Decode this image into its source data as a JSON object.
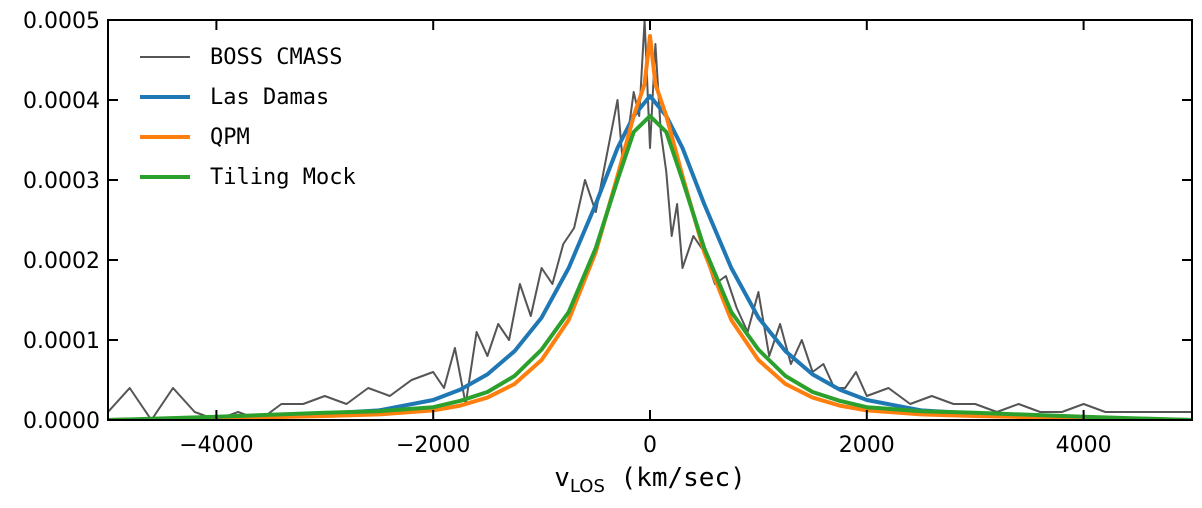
{
  "chart_data": {
    "type": "line",
    "xlabel_main": "v",
    "xlabel_sub": "LOS",
    "xlabel_rest": " (km/sec)",
    "ylabel": "",
    "xlim": [
      -5000,
      5000
    ],
    "ylim": [
      0.0,
      0.0005
    ],
    "x_ticks": [
      -4000,
      -2000,
      0,
      2000,
      4000
    ],
    "x_tick_labels": [
      "−4000",
      "−2000",
      "0",
      "2000",
      "4000"
    ],
    "y_ticks": [
      0.0,
      0.0001,
      0.0002,
      0.0003,
      0.0004,
      0.0005
    ],
    "y_tick_labels": [
      "0.0000",
      "0.0001",
      "0.0002",
      "0.0003",
      "0.0004",
      "0.0005"
    ],
    "grid": false,
    "legend_position": "top-left",
    "series": [
      {
        "name": "BOSS CMASS",
        "color": "#555555",
        "x": [
          -5000,
          -4800,
          -4600,
          -4400,
          -4200,
          -4000,
          -3800,
          -3600,
          -3400,
          -3200,
          -3000,
          -2800,
          -2600,
          -2400,
          -2200,
          -2000,
          -1900,
          -1800,
          -1700,
          -1600,
          -1500,
          -1400,
          -1300,
          -1200,
          -1100,
          -1000,
          -900,
          -800,
          -700,
          -600,
          -500,
          -400,
          -300,
          -250,
          -200,
          -150,
          -100,
          -50,
          0,
          50,
          100,
          150,
          200,
          250,
          300,
          400,
          500,
          600,
          700,
          800,
          900,
          1000,
          1100,
          1200,
          1300,
          1400,
          1500,
          1600,
          1700,
          1800,
          1900,
          2000,
          2200,
          2400,
          2600,
          2800,
          3000,
          3200,
          3400,
          3600,
          3800,
          4000,
          4200,
          4400,
          4600,
          4800,
          5000
        ],
        "y": [
          1e-05,
          4e-05,
          0.0,
          4e-05,
          1e-05,
          0.0,
          1e-05,
          0.0,
          2e-05,
          2e-05,
          3e-05,
          2e-05,
          4e-05,
          3e-05,
          5e-05,
          6e-05,
          4e-05,
          9e-05,
          2e-05,
          0.00011,
          8e-05,
          0.00012,
          0.0001,
          0.00017,
          0.00013,
          0.00019,
          0.00017,
          0.00022,
          0.00024,
          0.0003,
          0.00026,
          0.00033,
          0.0004,
          0.00032,
          0.00036,
          0.00041,
          0.00038,
          0.0005,
          0.00034,
          0.00047,
          0.00036,
          0.00031,
          0.00023,
          0.00027,
          0.00019,
          0.00023,
          0.00021,
          0.00017,
          0.00018,
          0.00014,
          0.00011,
          0.00016,
          8e-05,
          0.00012,
          7e-05,
          0.0001,
          6e-05,
          7e-05,
          4e-05,
          4e-05,
          6e-05,
          3e-05,
          4e-05,
          2e-05,
          3e-05,
          2e-05,
          2e-05,
          1e-05,
          2e-05,
          1e-05,
          1e-05,
          2e-05,
          1e-05,
          1e-05,
          1e-05,
          1e-05,
          1e-05
        ]
      },
      {
        "name": "Las Damas",
        "color": "#1f77b4",
        "x": [
          -5000,
          -4000,
          -3000,
          -2500,
          -2000,
          -1750,
          -1500,
          -1250,
          -1000,
          -750,
          -500,
          -300,
          -150,
          0,
          150,
          300,
          500,
          750,
          1000,
          1250,
          1500,
          1750,
          2000,
          2500,
          3000,
          4000,
          5000
        ],
        "y": [
          0.0,
          2e-06,
          8e-06,
          1.2e-05,
          2.5e-05,
          3.8e-05,
          5.7e-05,
          8.6e-05,
          0.000128,
          0.00019,
          0.00027,
          0.00034,
          0.00038,
          0.000405,
          0.00038,
          0.00034,
          0.00027,
          0.00019,
          0.000128,
          8.6e-05,
          5.7e-05,
          3.8e-05,
          2.5e-05,
          1.2e-05,
          8e-06,
          2e-06,
          0.0
        ]
      },
      {
        "name": "QPM",
        "color": "#ff7f0e",
        "x": [
          -5000,
          -4000,
          -3000,
          -2500,
          -2000,
          -1750,
          -1500,
          -1250,
          -1000,
          -750,
          -500,
          -300,
          -150,
          -50,
          0,
          50,
          150,
          300,
          500,
          750,
          1000,
          1250,
          1500,
          1750,
          2000,
          2500,
          3000,
          4000,
          5000
        ],
        "y": [
          0.0,
          2e-06,
          5e-06,
          7e-06,
          1.2e-05,
          1.8e-05,
          2.8e-05,
          4.5e-05,
          7.5e-05,
          0.000125,
          0.00021,
          0.000305,
          0.00038,
          0.00042,
          0.00048,
          0.00042,
          0.00038,
          0.000305,
          0.00021,
          0.000125,
          7.5e-05,
          4.5e-05,
          2.8e-05,
          1.8e-05,
          1.2e-05,
          7e-06,
          5e-06,
          2e-06,
          0.0
        ]
      },
      {
        "name": "Tiling Mock",
        "color": "#2ca02c",
        "x": [
          -5000,
          -4000,
          -3000,
          -2500,
          -2000,
          -1750,
          -1500,
          -1250,
          -1000,
          -750,
          -500,
          -300,
          -150,
          0,
          150,
          300,
          500,
          750,
          1000,
          1250,
          1500,
          1750,
          2000,
          2500,
          3000,
          4000,
          5000
        ],
        "y": [
          0.0,
          4e-06,
          9e-06,
          1.1e-05,
          1.6e-05,
          2.4e-05,
          3.5e-05,
          5.5e-05,
          8.8e-05,
          0.000135,
          0.000215,
          0.0003,
          0.00036,
          0.00038,
          0.00036,
          0.0003,
          0.000215,
          0.000135,
          8.8e-05,
          5.5e-05,
          3.5e-05,
          2.4e-05,
          1.6e-05,
          1.1e-05,
          9e-06,
          4e-06,
          0.0
        ]
      }
    ]
  }
}
